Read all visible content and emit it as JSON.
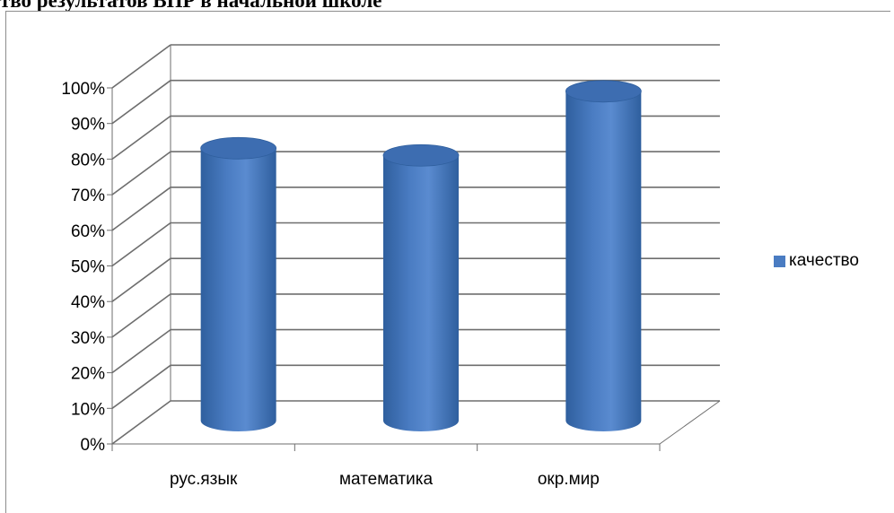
{
  "chart_data": {
    "type": "bar",
    "title": "тво результатов ВПР в начальной школе",
    "categories": [
      "рус.язык",
      "математика",
      "окр.мир"
    ],
    "series": [
      {
        "name": "качество",
        "values": [
          77,
          75,
          93
        ]
      }
    ],
    "yticks": [
      "0%",
      "10%",
      "20%",
      "30%",
      "40%",
      "50%",
      "60%",
      "70%",
      "80%",
      "90%",
      "100%"
    ],
    "ylim": [
      0,
      100
    ],
    "grid": true,
    "legend": "right",
    "colors": {
      "bar": "#4a7cc2",
      "bar_dark": "#2f5f9e",
      "bar_top": "#3d6db1",
      "grid": "#6e6e6e"
    }
  }
}
